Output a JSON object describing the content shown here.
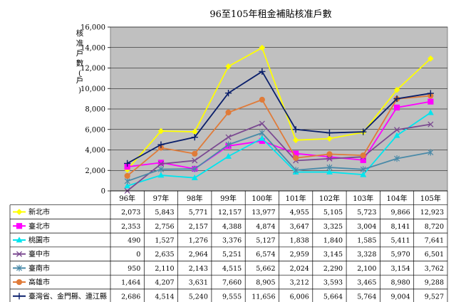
{
  "chart_data": {
    "type": "line",
    "title": "96至105年租金補貼核准戶數",
    "ylabel": "核准戶數(戶)",
    "ylim": [
      0,
      16000
    ],
    "yticks": [
      "0",
      "2,000",
      "4,000",
      "6,000",
      "8,000",
      "10,000",
      "12,000",
      "14,000",
      "16,000"
    ],
    "grid": true,
    "legend": "data-table-below",
    "categories": [
      "96年",
      "97年",
      "98年",
      "99年",
      "100年",
      "101年",
      "102年",
      "103年",
      "104年",
      "105年"
    ],
    "series": [
      {
        "name": "新北市",
        "color": "#ffff00",
        "marker": "diamond",
        "values": [
          2073,
          5843,
          5771,
          12157,
          13977,
          4955,
          5105,
          5723,
          9866,
          12923
        ],
        "labels": [
          "2,073",
          "5,843",
          "5,771",
          "12,157",
          "13,977",
          "4,955",
          "5,105",
          "5,723",
          "9,866",
          "12,923"
        ]
      },
      {
        "name": "臺北市",
        "color": "#ff00ff",
        "marker": "square",
        "values": [
          2353,
          2756,
          2157,
          4388,
          4874,
          3647,
          3325,
          3004,
          8141,
          8720
        ],
        "labels": [
          "2,353",
          "2,756",
          "2,157",
          "4,388",
          "4,874",
          "3,647",
          "3,325",
          "3,004",
          "8,141",
          "8,720"
        ]
      },
      {
        "name": "桃園市",
        "color": "#00e5ee",
        "marker": "triangle",
        "values": [
          490,
          1527,
          1276,
          3376,
          5127,
          1838,
          1840,
          1585,
          5411,
          7641
        ],
        "labels": [
          "490",
          "1,527",
          "1,276",
          "3,376",
          "5,127",
          "1,838",
          "1,840",
          "1,585",
          "5,411",
          "7,641"
        ]
      },
      {
        "name": "臺中市",
        "color": "#7b4a91",
        "marker": "x",
        "values": [
          0,
          2635,
          2964,
          5251,
          6574,
          2959,
          3145,
          3328,
          5970,
          6501
        ],
        "labels": [
          "0",
          "2,635",
          "2,964",
          "5,251",
          "6,574",
          "2,959",
          "3,145",
          "3,328",
          "5,970",
          "6,501"
        ]
      },
      {
        "name": "臺南市",
        "color": "#4a8aa8",
        "marker": "star",
        "values": [
          950,
          2110,
          2143,
          4515,
          5662,
          2024,
          2290,
          2100,
          3154,
          3762
        ],
        "labels": [
          "950",
          "2,110",
          "2,143",
          "4,515",
          "5,662",
          "2,024",
          "2,290",
          "2,100",
          "3,154",
          "3,762"
        ]
      },
      {
        "name": "高雄市",
        "color": "#e07b39",
        "marker": "circle",
        "values": [
          1464,
          4207,
          3631,
          7660,
          8905,
          3212,
          3593,
          3465,
          8980,
          9288
        ],
        "labels": [
          "1,464",
          "4,207",
          "3,631",
          "7,660",
          "8,905",
          "3,212",
          "3,593",
          "3,465",
          "8,980",
          "9,288"
        ]
      },
      {
        "name": "臺灣省、金門縣、連江縣",
        "color": "#0a1f6b",
        "marker": "plus",
        "values": [
          2686,
          4514,
          5240,
          9555,
          11656,
          6006,
          5664,
          5764,
          9004,
          9527
        ],
        "labels": [
          "2,686",
          "4,514",
          "5,240",
          "9,555",
          "11,656",
          "6,006",
          "5,664",
          "5,764",
          "9,004",
          "9,527"
        ]
      }
    ]
  }
}
